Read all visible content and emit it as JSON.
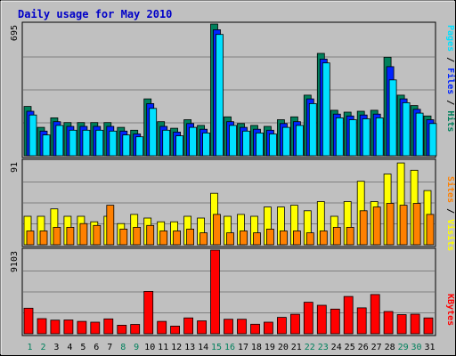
{
  "chart_data": {
    "type": "bar",
    "title": "Daily usage for May 2010",
    "days": [
      "1",
      "2",
      "3",
      "4",
      "5",
      "6",
      "7",
      "8",
      "9",
      "10",
      "11",
      "12",
      "13",
      "14",
      "15",
      "16",
      "17",
      "18",
      "19",
      "20",
      "21",
      "22",
      "23",
      "24",
      "25",
      "26",
      "27",
      "28",
      "29",
      "30",
      "31"
    ],
    "weekend_days": [
      "1",
      "2",
      "8",
      "9",
      "15",
      "16",
      "22",
      "23",
      "29",
      "30"
    ],
    "panels": {
      "hits": {
        "scale_label": "695",
        "max": 695,
        "series": [
          {
            "name": "Hits",
            "color": "#00805c",
            "values": [
              260,
              150,
              200,
              175,
              175,
              175,
              175,
              150,
              135,
              300,
              180,
              145,
              190,
              160,
              695,
              205,
              170,
              160,
              155,
              190,
              205,
              320,
              540,
              240,
              230,
              235,
              240,
              520,
              320,
              265,
              210
            ]
          },
          {
            "name": "Files",
            "color": "#0024ff",
            "values": [
              235,
              130,
              180,
              155,
              155,
              155,
              155,
              130,
              115,
              275,
              155,
              125,
              170,
              140,
              665,
              180,
              150,
              140,
              135,
              170,
              180,
              300,
              510,
              220,
              210,
              215,
              220,
              470,
              300,
              245,
              190
            ]
          },
          {
            "name": "Pages",
            "color": "#00e0ff",
            "values": [
              215,
              110,
              160,
              135,
              135,
              135,
              130,
              110,
              100,
              250,
              135,
              105,
              150,
              120,
              640,
              160,
              130,
              120,
              115,
              150,
              160,
              275,
              490,
              200,
              190,
              195,
              200,
              400,
              280,
              225,
              170
            ]
          }
        ]
      },
      "visits": {
        "scale_label": "91",
        "max": 91,
        "series": [
          {
            "name": "Visits",
            "color": "#ffff00",
            "values": [
              31,
              31,
              39,
              31,
              31,
              25,
              31,
              23,
              33,
              29,
              25,
              25,
              31,
              29,
              56,
              31,
              33,
              31,
              41,
              41,
              43,
              37,
              47,
              31,
              47,
              69,
              47,
              77,
              89,
              81,
              59
            ]
          },
          {
            "name": "Sites",
            "color": "#ff8000",
            "values": [
              15,
              15,
              19,
              19,
              23,
              21,
              43,
              17,
              19,
              21,
              15,
              15,
              17,
              13,
              33,
              13,
              15,
              13,
              17,
              15,
              15,
              13,
              15,
              19,
              19,
              37,
              41,
              45,
              43,
              45,
              33
            ]
          }
        ]
      },
      "kbytes": {
        "scale_label": "9103",
        "max": 9103,
        "series": [
          {
            "name": "KBytes",
            "color": "#ff0000",
            "values": [
              2780,
              1650,
              1480,
              1500,
              1350,
              1260,
              1620,
              930,
              1020,
              4610,
              1350,
              830,
              1720,
              1400,
              9103,
              1580,
              1580,
              1040,
              1260,
              1780,
              2120,
              3430,
              3100,
              2680,
              4060,
              2820,
              4270,
              2420,
              2080,
              2130,
              1720
            ]
          }
        ]
      }
    },
    "legend_right": [
      {
        "text": "Pages",
        "color": "#00e0ff"
      },
      {
        "text": " / ",
        "color": "#000000"
      },
      {
        "text": "Files",
        "color": "#0024ff"
      },
      {
        "text": " / ",
        "color": "#000000"
      },
      {
        "text": "Hits",
        "color": "#00805c"
      },
      {
        "text": "Sites",
        "color": "#ff8000"
      },
      {
        "text": " / ",
        "color": "#000000"
      },
      {
        "text": "Visits",
        "color": "#ffff00"
      },
      {
        "text": "KBytes",
        "color": "#ff0000"
      }
    ],
    "weekday_color": "#000000",
    "weekend_color": "#00805c",
    "background_color": "#c0c0c0",
    "grid": true
  }
}
